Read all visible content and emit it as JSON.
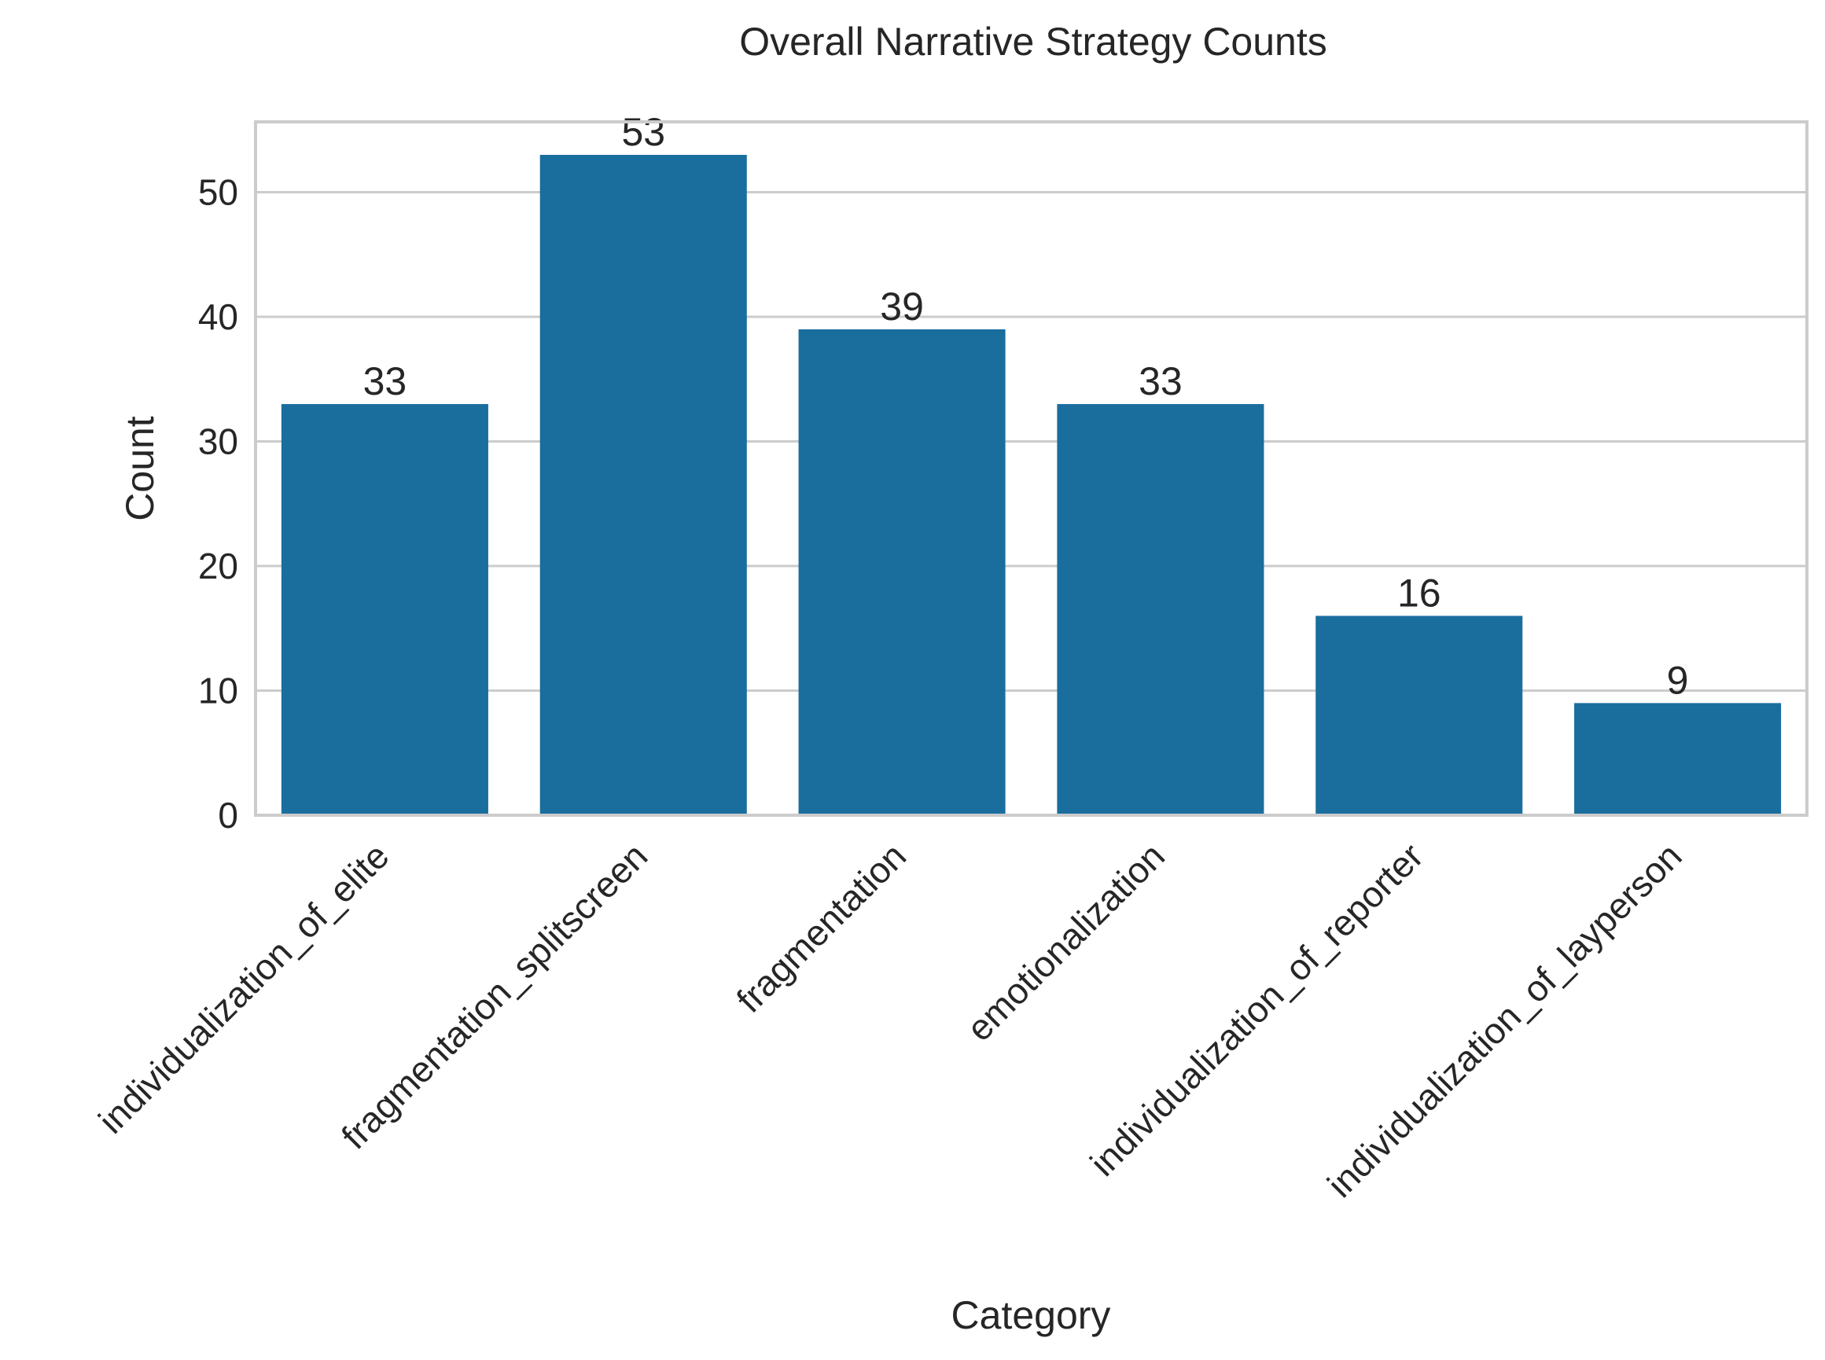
{
  "chart_data": {
    "type": "bar",
    "title": "Overall Narrative Strategy Counts",
    "xlabel": "Category",
    "ylabel": "Count",
    "categories": [
      "individualization_of_elite",
      "fragmentation_splitscreen",
      "fragmentation",
      "emotionalization",
      "individualization_of_reporter",
      "individualization_of_layperson"
    ],
    "values": [
      33,
      53,
      39,
      33,
      16,
      9
    ],
    "data_labels": [
      "33",
      "53",
      "39",
      "33",
      "16",
      "9"
    ],
    "yticks": [
      0,
      10,
      20,
      30,
      40,
      50
    ],
    "ylim": [
      0,
      55.65
    ],
    "grid": "horizontal",
    "bar_color": "#1a6e9e"
  }
}
